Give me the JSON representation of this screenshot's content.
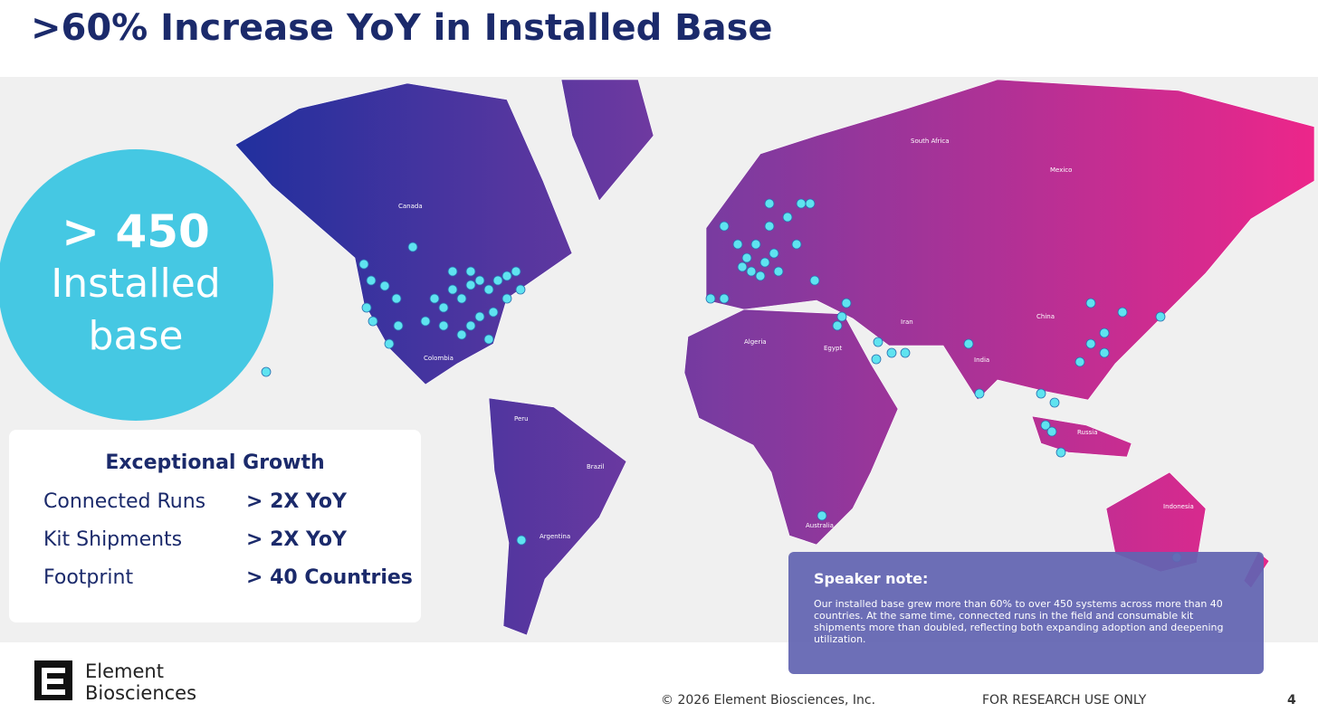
{
  "header": {
    "title": ">60% Increase YoY in Installed Base"
  },
  "badge": {
    "value": "> 450",
    "label": "Installed base"
  },
  "growth": {
    "title": "Exceptional Growth",
    "rows": [
      [
        "Connected Runs",
        "> 2X YoY"
      ],
      [
        "Kit Shipments",
        "> 2X YoY"
      ],
      [
        "Footprint",
        "> 40 Countries"
      ]
    ]
  },
  "note": {
    "title": "Speaker note:",
    "text": "Our installed base grew more than 60% to over 450 systems across more than 40 countries. At the same time, connected runs in the field and consumable kit shipments more than doubled, reflecting both expanding adoption and deepening utilization."
  },
  "map": {
    "labels": [
      "Canada",
      "Mexico",
      "Colombia",
      "Peru",
      "Brazil",
      "Argentina",
      "Algeria",
      "Egypt",
      "Iran",
      "India",
      "China",
      "Russia",
      "Indonesia",
      "Australia",
      "South Africa"
    ]
  },
  "footer": {
    "logo": [
      "Element",
      "Biosciences"
    ],
    "copyright": "© 2026 Element Biosciences, Inc.",
    "notice": "FOR RESEARCH USE ONLY",
    "page": "4"
  }
}
